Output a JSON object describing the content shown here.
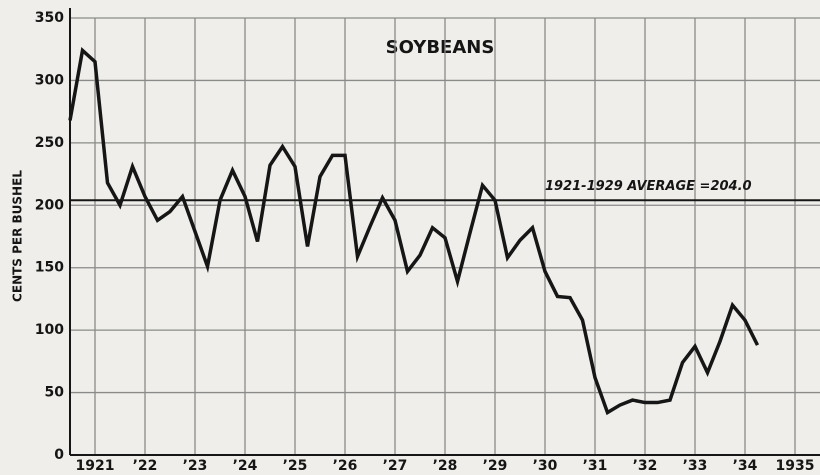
{
  "chart_data": {
    "type": "line",
    "title": "SOYBEANS",
    "y_label": "CENTS PER BUSHEL",
    "xlim": [
      1921.0,
      1936.0
    ],
    "ylim": [
      0,
      350
    ],
    "yticks": [
      0,
      50,
      100,
      150,
      200,
      250,
      300,
      350
    ],
    "xticks": [
      {
        "value": 1921.5,
        "label": "1921"
      },
      {
        "value": 1922.5,
        "label": "’22"
      },
      {
        "value": 1923.5,
        "label": "’23"
      },
      {
        "value": 1924.5,
        "label": "’24"
      },
      {
        "value": 1925.5,
        "label": "’25"
      },
      {
        "value": 1926.5,
        "label": "’26"
      },
      {
        "value": 1927.5,
        "label": "’27"
      },
      {
        "value": 1928.5,
        "label": "’28"
      },
      {
        "value": 1929.5,
        "label": "’29"
      },
      {
        "value": 1930.5,
        "label": "’30"
      },
      {
        "value": 1931.5,
        "label": "’31"
      },
      {
        "value": 1932.5,
        "label": "’32"
      },
      {
        "value": 1933.5,
        "label": "’33"
      },
      {
        "value": 1934.5,
        "label": "’34"
      },
      {
        "value": 1935.5,
        "label": "1935"
      }
    ],
    "grid": true,
    "average": {
      "value": 204.0,
      "label": "1921-1929 AVERAGE =204.0"
    },
    "series": [
      {
        "name": "Soybeans",
        "color": "#161616",
        "x": [
          1921.0,
          1921.25,
          1921.5,
          1921.75,
          1922.0,
          1922.25,
          1922.5,
          1922.75,
          1923.0,
          1923.25,
          1923.5,
          1923.75,
          1924.0,
          1924.25,
          1924.5,
          1924.75,
          1925.0,
          1925.25,
          1925.5,
          1925.75,
          1926.0,
          1926.25,
          1926.5,
          1926.75,
          1927.0,
          1927.25,
          1927.5,
          1927.75,
          1928.0,
          1928.25,
          1928.5,
          1928.75,
          1929.0,
          1929.25,
          1929.5,
          1929.75,
          1930.0,
          1930.25,
          1930.5,
          1930.75,
          1931.0,
          1931.25,
          1931.5,
          1931.75,
          1932.0,
          1932.25,
          1932.5,
          1932.75,
          1933.0,
          1933.25,
          1933.5,
          1933.75,
          1934.0,
          1934.25,
          1934.5,
          1934.75
        ],
        "values": [
          268,
          324,
          315,
          218,
          200,
          231,
          207,
          188,
          195,
          207,
          179,
          151,
          204,
          228,
          207,
          171,
          232,
          247,
          231,
          167,
          223,
          240,
          240,
          159,
          183,
          206,
          188,
          147,
          160,
          182,
          174,
          139,
          178,
          216,
          204,
          158,
          172,
          182,
          147,
          127,
          126,
          108,
          62,
          34,
          40,
          44,
          42,
          42,
          44,
          74,
          87,
          66,
          91,
          120,
          108,
          88
        ]
      }
    ]
  }
}
